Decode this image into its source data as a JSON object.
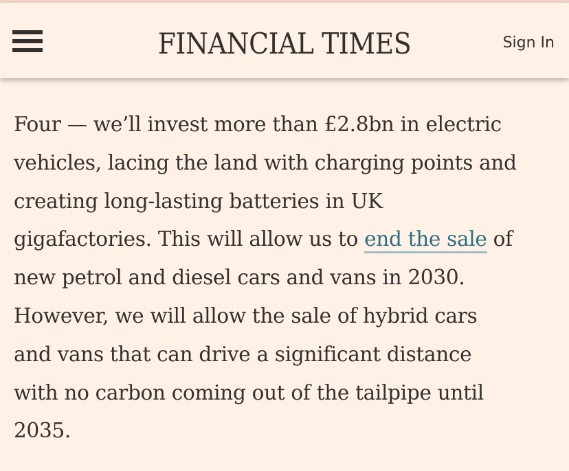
{
  "header": {
    "menu_icon": "hamburger-menu-icon",
    "masthead": "FINANCIAL TIMES",
    "sign_in_label": "Sign In"
  },
  "article": {
    "lines": [
      "Four — we’ll invest more than £2.8bn in electric",
      "vehicles, lacing the land with charging points and",
      "creating long-lasting batteries in UK",
      "gigafactories. This will allow us to ",
      "new petrol and diesel cars and vans in 2030.",
      "However, we will allow the sale of hybrid cars",
      "and vans that can drive a significant distance",
      "with no carbon coming out of the tailpipe until",
      "2035."
    ],
    "link_text": "end the sale",
    "after_link": " of"
  },
  "colors": {
    "background": "#fff1e5",
    "text": "#33302e",
    "link": "#2b6f86"
  }
}
